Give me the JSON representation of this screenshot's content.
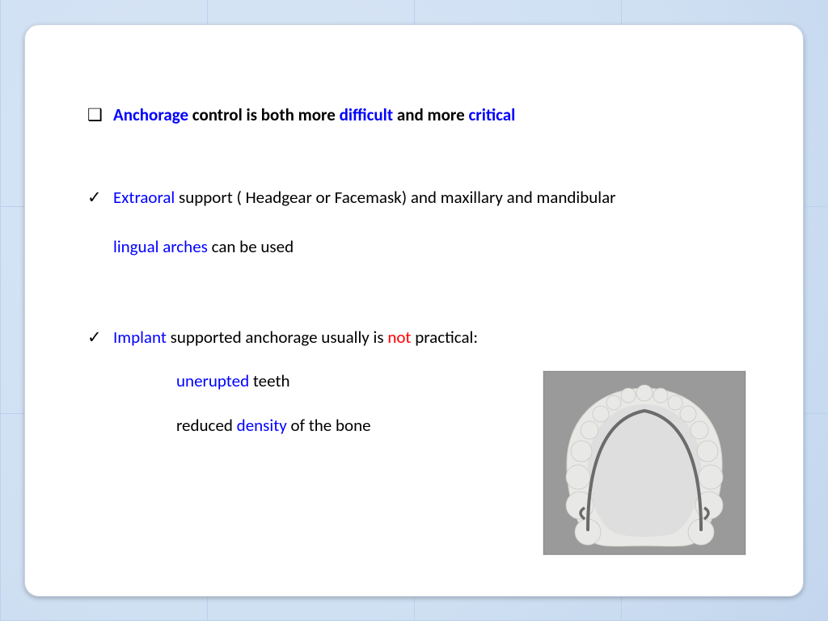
{
  "colors": {
    "blue": "#0000ff",
    "red": "#ff0000",
    "black": "#000000",
    "slide_bg": "#ffffff",
    "border_bg_base": "#cfe0f3"
  },
  "font": {
    "family": "Calibri",
    "body_size_pt": 16,
    "title_weight": 700
  },
  "bullets": {
    "square": "❑",
    "check": "✓"
  },
  "line1": {
    "segments": [
      {
        "text": "Anchorage",
        "color": "blue",
        "bold": true
      },
      {
        "text": " control is both more ",
        "color": "black",
        "bold": true
      },
      {
        "text": "difficult",
        "color": "blue",
        "bold": true
      },
      {
        "text": " and more ",
        "color": "black",
        "bold": true
      },
      {
        "text": "critical",
        "color": "blue",
        "bold": true
      }
    ]
  },
  "line2a": {
    "segments": [
      {
        "text": "Extraoral",
        "color": "blue"
      },
      {
        "text": " support ( Headgear or Facemask) and maxillary and mandibular",
        "color": "black"
      }
    ]
  },
  "line2b": {
    "segments": [
      {
        "text": "lingual arches",
        "color": "blue"
      },
      {
        "text": " can be used",
        "color": "black"
      }
    ]
  },
  "line3": {
    "segments": [
      {
        "text": "Implant",
        "color": "blue"
      },
      {
        "text": " supported anchorage usually is ",
        "color": "black"
      },
      {
        "text": "not",
        "color": "red"
      },
      {
        "text": " practical:",
        "color": "black"
      }
    ]
  },
  "line4": {
    "segments": [
      {
        "text": "unerupted",
        "color": "blue"
      },
      {
        "text": " teeth",
        "color": "black"
      }
    ]
  },
  "line5": {
    "segments": [
      {
        "text": "reduced ",
        "color": "black"
      },
      {
        "text": "density",
        "color": "blue"
      },
      {
        "text": " of the bone",
        "color": "black"
      }
    ]
  },
  "image": {
    "name": "dental-arch-lingual-wire",
    "bg": "#9a9a9a",
    "cast": "#e8e8e6",
    "wire": "#6b6b6b",
    "outline": "#b8b8b4"
  }
}
